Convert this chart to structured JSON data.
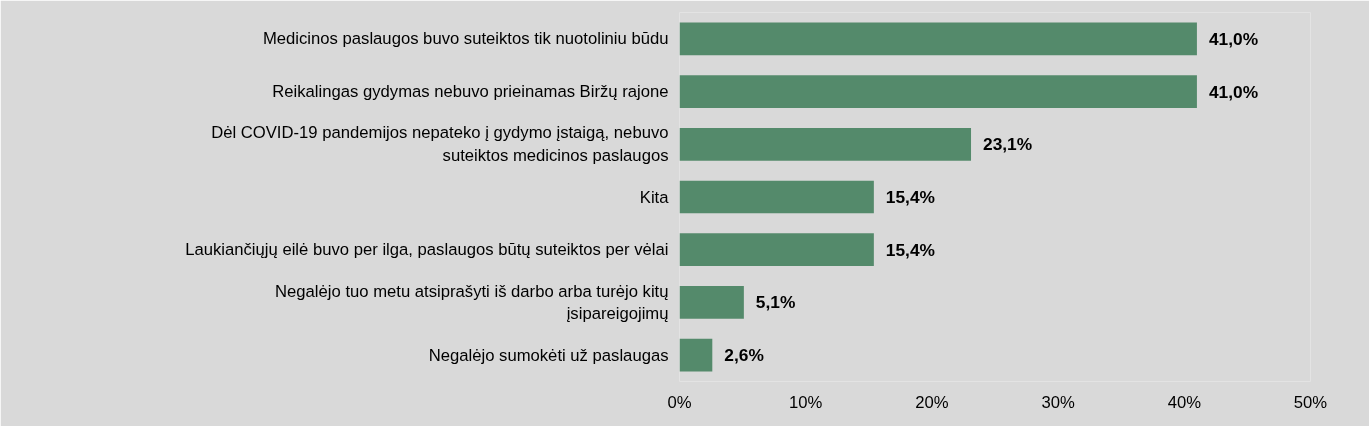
{
  "chart_data": {
    "type": "bar",
    "orientation": "horizontal",
    "categories": [
      "Medicinos paslaugos buvo suteiktos tik nuotoliniu būdu",
      "Reikalingas gydymas nebuvo prieinamas Biržų rajone",
      "Dėl COVID-19 pandemijos nepateko į gydymo įstaigą, nebuvo\nsuteiktos medicinos paslaugos",
      "Kita",
      "Laukiančiųjų eilė buvo per ilga, paslaugos būtų suteiktos per vėlai",
      "Negalėjo tuo metu atsiprašyti iš darbo arba turėjo kitų\nįsipareigojimų",
      "Negalėjo sumokėti už paslaugas"
    ],
    "values": [
      41.0,
      41.0,
      23.1,
      15.4,
      15.4,
      5.1,
      2.6
    ],
    "value_labels": [
      "41,0%",
      "41,0%",
      "23,1%",
      "15,4%",
      "15,4%",
      "5,1%",
      "2,6%"
    ],
    "color": "#548a6b",
    "xlim": [
      0,
      50
    ],
    "xticks": [
      {
        "value": 0,
        "label": "0%"
      },
      {
        "value": 10,
        "label": "10%"
      },
      {
        "value": 20,
        "label": "20%"
      },
      {
        "value": 30,
        "label": "30%"
      },
      {
        "value": 40,
        "label": "40%"
      },
      {
        "value": 50,
        "label": "50%"
      }
    ],
    "grid": false
  }
}
